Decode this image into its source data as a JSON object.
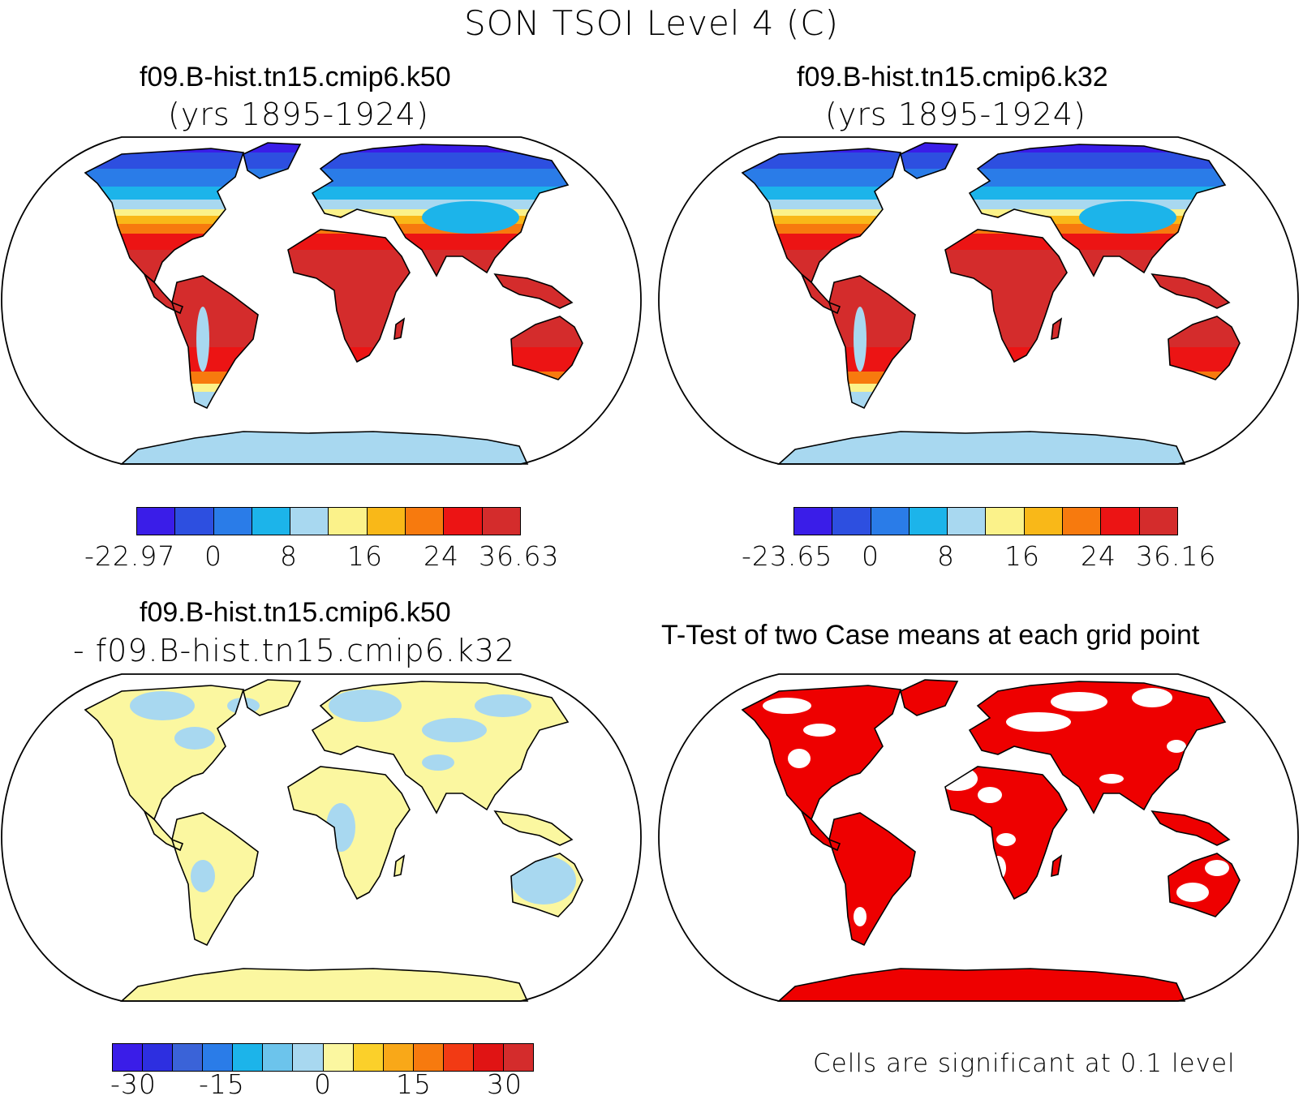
{
  "title": "SON TSOI Level 4 (C)",
  "panels": [
    {
      "id": "k50",
      "title": "f09.B-hist.tn15.cmip6.k50",
      "subtitle": "(yrs 1895-1924)",
      "colorbar": {
        "colors": [
          "#3a1de8",
          "#2d4fe0",
          "#2a7ce8",
          "#1cb4ea",
          "#a8d8f0",
          "#fbf28a",
          "#f9b818",
          "#f77a0e",
          "#ec1414",
          "#d42c2c"
        ],
        "labels": [
          "-22.97",
          "0",
          "8",
          "16",
          "24",
          "36.63"
        ]
      }
    },
    {
      "id": "k32",
      "title": "f09.B-hist.tn15.cmip6.k32",
      "subtitle": "(yrs 1895-1924)",
      "colorbar": {
        "colors": [
          "#3a1de8",
          "#2d4fe0",
          "#2a7ce8",
          "#1cb4ea",
          "#a8d8f0",
          "#fbf28a",
          "#f9b818",
          "#f77a0e",
          "#ec1414",
          "#d42c2c"
        ],
        "labels": [
          "-23.65",
          "0",
          "8",
          "16",
          "24",
          "36.16"
        ]
      }
    },
    {
      "id": "diff",
      "title": "f09.B-hist.tn15.cmip6.k50",
      "subtitle": "- f09.B-hist.tn15.cmip6.k32",
      "colorbar": {
        "colors": [
          "#3a1de8",
          "#2d2fe0",
          "#3a63d8",
          "#2a7ce8",
          "#1cb4ea",
          "#6cc4ec",
          "#a8d8f0",
          "#fbf7a0",
          "#fbd02a",
          "#f9a818",
          "#f77a0e",
          "#f23a14",
          "#e01414",
          "#d42c2c"
        ],
        "labels": [
          "-30",
          "-15",
          "0",
          "15",
          "30"
        ]
      }
    },
    {
      "id": "ttest",
      "title": "T-Test of two Case means at each grid point",
      "note": "Cells are significant at 0.1 level"
    }
  ]
}
